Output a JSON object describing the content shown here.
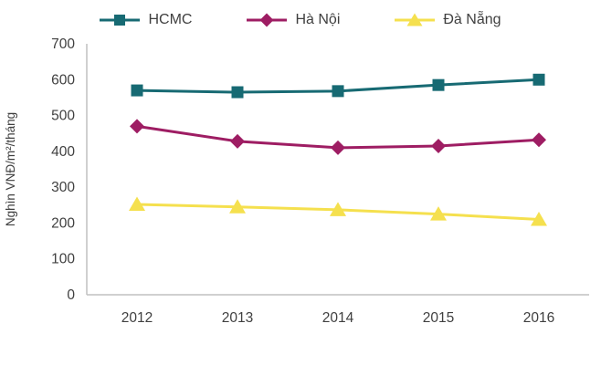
{
  "chart_data": {
    "type": "line",
    "x": [
      "2012",
      "2013",
      "2014",
      "2015",
      "2016"
    ],
    "series": [
      {
        "name": "HCMC",
        "color": "#176a73",
        "marker": "square",
        "values": [
          570,
          565,
          568,
          585,
          600
        ]
      },
      {
        "name": "Hà Nội",
        "color": "#9e1d63",
        "marker": "diamond",
        "values": [
          470,
          428,
          410,
          415,
          432
        ]
      },
      {
        "name": "Đà Nẵng",
        "color": "#f5e04e",
        "marker": "triangle",
        "values": [
          252,
          245,
          237,
          225,
          210
        ]
      }
    ],
    "title": "",
    "xlabel": "",
    "ylabel": "Nghìn VNĐ/m²/tháng",
    "ylim": [
      0,
      700
    ],
    "ytick_step": 100,
    "yticks": [
      0,
      100,
      200,
      300,
      400,
      500,
      600,
      700
    ],
    "grid": false,
    "legend_position": "top",
    "axis_color": "#c0c0c0",
    "text_color": "#404040"
  }
}
